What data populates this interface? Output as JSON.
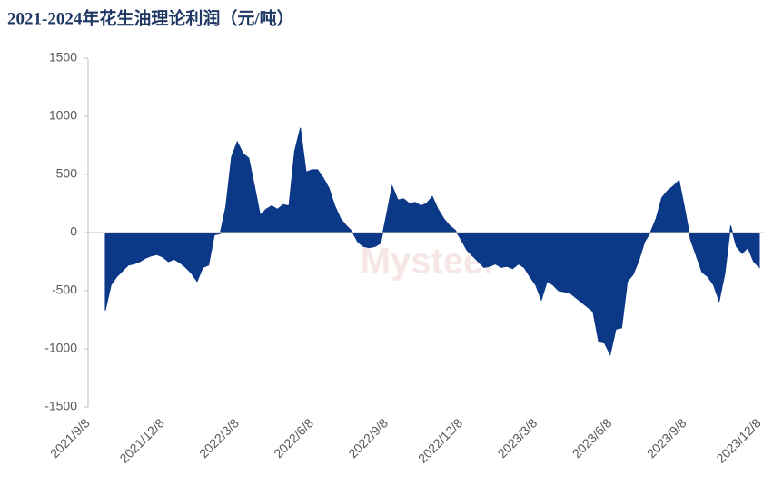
{
  "chart_data": {
    "type": "area",
    "title": "2021-2024年花生油理论利润（元/吨）",
    "watermark": "Mysteel",
    "color": "#0b3887",
    "ylim": [
      -1500,
      1500
    ],
    "yticks": [
      -1500,
      -1000,
      -500,
      0,
      500,
      1000,
      1500
    ],
    "categories": [
      "2021/9/8",
      null,
      null,
      null,
      null,
      null,
      null,
      null,
      null,
      null,
      null,
      null,
      null,
      "2021/12/8",
      null,
      null,
      null,
      null,
      null,
      null,
      null,
      null,
      null,
      null,
      null,
      null,
      "2022/3/8",
      null,
      null,
      null,
      null,
      null,
      null,
      null,
      null,
      null,
      null,
      null,
      null,
      "2022/6/8",
      null,
      null,
      null,
      null,
      null,
      null,
      null,
      null,
      null,
      null,
      null,
      null,
      "2022/9/8",
      null,
      null,
      null,
      null,
      null,
      null,
      null,
      null,
      null,
      null,
      null,
      null,
      "2022/12/8",
      null,
      null,
      null,
      null,
      null,
      null,
      null,
      null,
      null,
      null,
      null,
      null,
      "2023/3/8",
      null,
      null,
      null,
      null,
      null,
      null,
      null,
      null,
      null,
      null,
      null,
      null,
      "2023/6/8",
      null,
      null,
      null,
      null,
      null,
      null,
      null,
      null,
      null,
      null,
      null,
      null,
      "2023/9/8",
      null,
      null,
      null,
      null,
      null,
      null,
      null,
      null,
      null,
      null,
      null,
      null,
      "2023/12/8"
    ],
    "values": [
      null,
      null,
      null,
      -670,
      -450,
      -380,
      -330,
      -280,
      -270,
      -250,
      -220,
      -200,
      -190,
      -210,
      -250,
      -230,
      -260,
      -300,
      -350,
      -420,
      -300,
      -280,
      -20,
      -10,
      220,
      650,
      780,
      680,
      640,
      400,
      150,
      200,
      230,
      200,
      240,
      230,
      700,
      900,
      520,
      540,
      540,
      470,
      380,
      230,
      120,
      60,
      10,
      -80,
      -120,
      -130,
      -120,
      -90,
      150,
      400,
      280,
      290,
      250,
      260,
      230,
      250,
      310,
      200,
      120,
      60,
      20,
      -60,
      -150,
      -200,
      -250,
      -300,
      -290,
      -270,
      -300,
      -290,
      -310,
      -270,
      -300,
      -380,
      -450,
      -580,
      -420,
      -450,
      -500,
      -510,
      -520,
      -560,
      -600,
      -640,
      -680,
      -940,
      -950,
      -1050,
      -830,
      -820,
      -420,
      -360,
      -240,
      -80,
      0,
      120,
      300,
      360,
      400,
      450,
      200,
      -60,
      -200,
      -340,
      -380,
      -450,
      -590,
      -350,
      60,
      -120,
      -180,
      -130,
      -250,
      -300
    ]
  }
}
